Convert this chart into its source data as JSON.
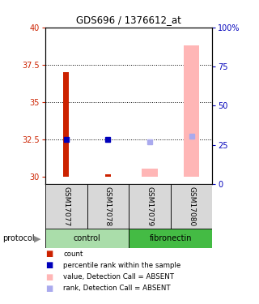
{
  "title": "GDS696 / 1376612_at",
  "samples": [
    "GSM17077",
    "GSM17078",
    "GSM17079",
    "GSM17080"
  ],
  "ylim_left": [
    29.5,
    40
  ],
  "ylim_right": [
    0,
    100
  ],
  "yticks_left": [
    30,
    32.5,
    35,
    37.5,
    40
  ],
  "yticks_right": [
    0,
    25,
    50,
    75,
    100
  ],
  "yticklabels_right": [
    "0",
    "25",
    "50",
    "75",
    "100%"
  ],
  "bar_bottom": 30,
  "red_bars": {
    "GSM17077": 37.0,
    "GSM17078": 30.12
  },
  "pink_bars": {
    "GSM17079": 30.55,
    "GSM17080": 38.8
  },
  "blue_squares": {
    "GSM17077": 32.5,
    "GSM17078": 32.5
  },
  "lightblue_squares": {
    "GSM17079": 32.3,
    "GSM17080": 32.7
  },
  "red_color": "#CC2200",
  "blue_color": "#0000BB",
  "pink_color": "#FFB6B6",
  "lightblue_color": "#AAAAEE",
  "bg_color": "#D8D8D8",
  "left_tick_color": "#CC2200",
  "right_tick_color": "#0000BB",
  "grid_lines": [
    32.5,
    35.0,
    37.5
  ],
  "control_color": "#AADDAA",
  "fibronectin_color": "#44BB44",
  "legend_items": [
    {
      "label": "count",
      "color": "#CC2200"
    },
    {
      "label": "percentile rank within the sample",
      "color": "#0000BB"
    },
    {
      "label": "value, Detection Call = ABSENT",
      "color": "#FFB6B6"
    },
    {
      "label": "rank, Detection Call = ABSENT",
      "color": "#AAAAEE"
    }
  ]
}
